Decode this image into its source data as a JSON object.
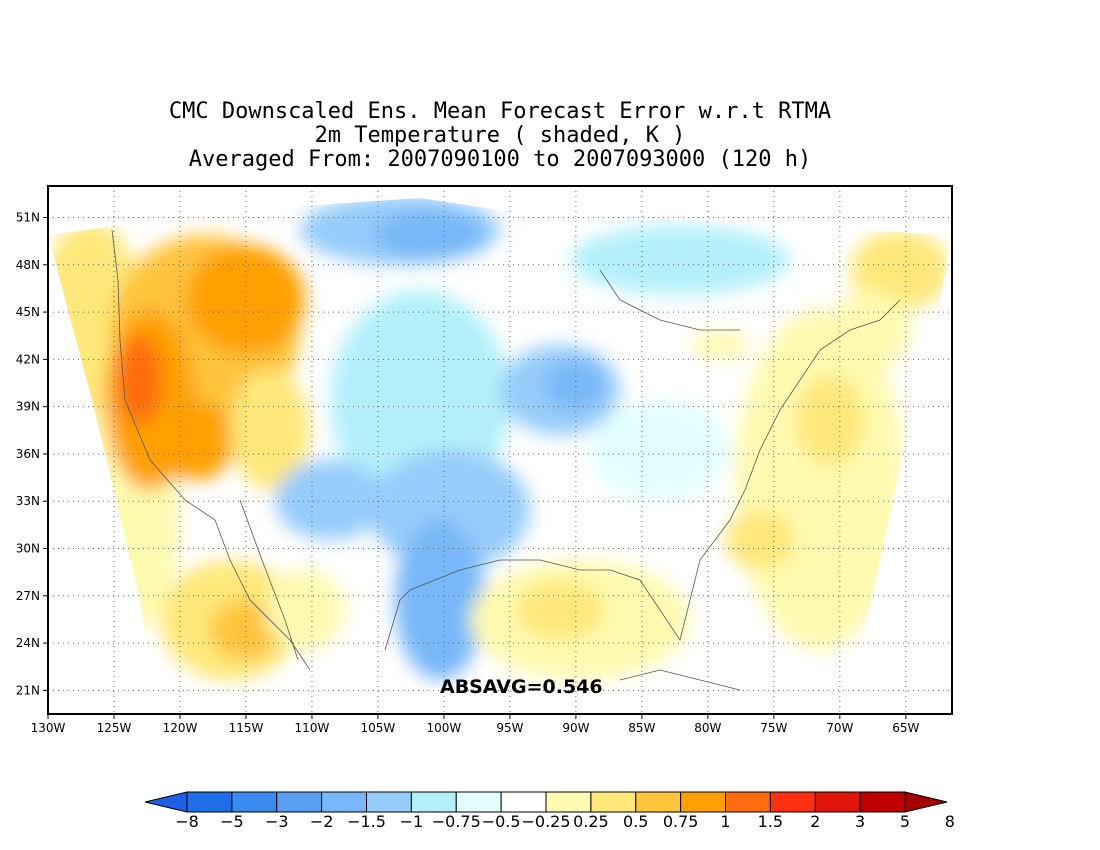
{
  "title": {
    "line1": "CMC Downscaled Ens. Mean Forecast Error w.r.t RTMA",
    "line2": "2m Temperature ( shaded, K )",
    "line3": "Averaged From: 2007090100 to 2007093000 (120 h)"
  },
  "map": {
    "lon_range": [
      -130,
      -61.5
    ],
    "lat_range": [
      19.5,
      53
    ],
    "lon_ticks": [
      "130W",
      "125W",
      "120W",
      "115W",
      "110W",
      "105W",
      "100W",
      "95W",
      "90W",
      "85W",
      "80W",
      "75W",
      "70W",
      "65W"
    ],
    "lat_ticks": [
      "21N",
      "24N",
      "27N",
      "30N",
      "33N",
      "36N",
      "39N",
      "42N",
      "45N",
      "48N",
      "51N"
    ],
    "grid": "dotted"
  },
  "absavg": "ABSAVG=0.546",
  "colorbar": {
    "labels": [
      "−8",
      "−5",
      "−3",
      "−2",
      "−1.5",
      "−1",
      "−0.75",
      "−0.5",
      "−0.25",
      "0.25",
      "0.5",
      "0.75",
      "1",
      "1.5",
      "2",
      "3",
      "5",
      "8"
    ],
    "colors": [
      "#1c5ee8",
      "#1e6ee8",
      "#3a8af0",
      "#5aa0f2",
      "#78b8f8",
      "#96ccfa",
      "#b4f0fa",
      "#e2fffe",
      "#ffffff",
      "#fffab0",
      "#ffe87a",
      "#ffc43c",
      "#ffa000",
      "#ff6c10",
      "#fe3010",
      "#e01408",
      "#be0000",
      "#a50000"
    ]
  }
}
